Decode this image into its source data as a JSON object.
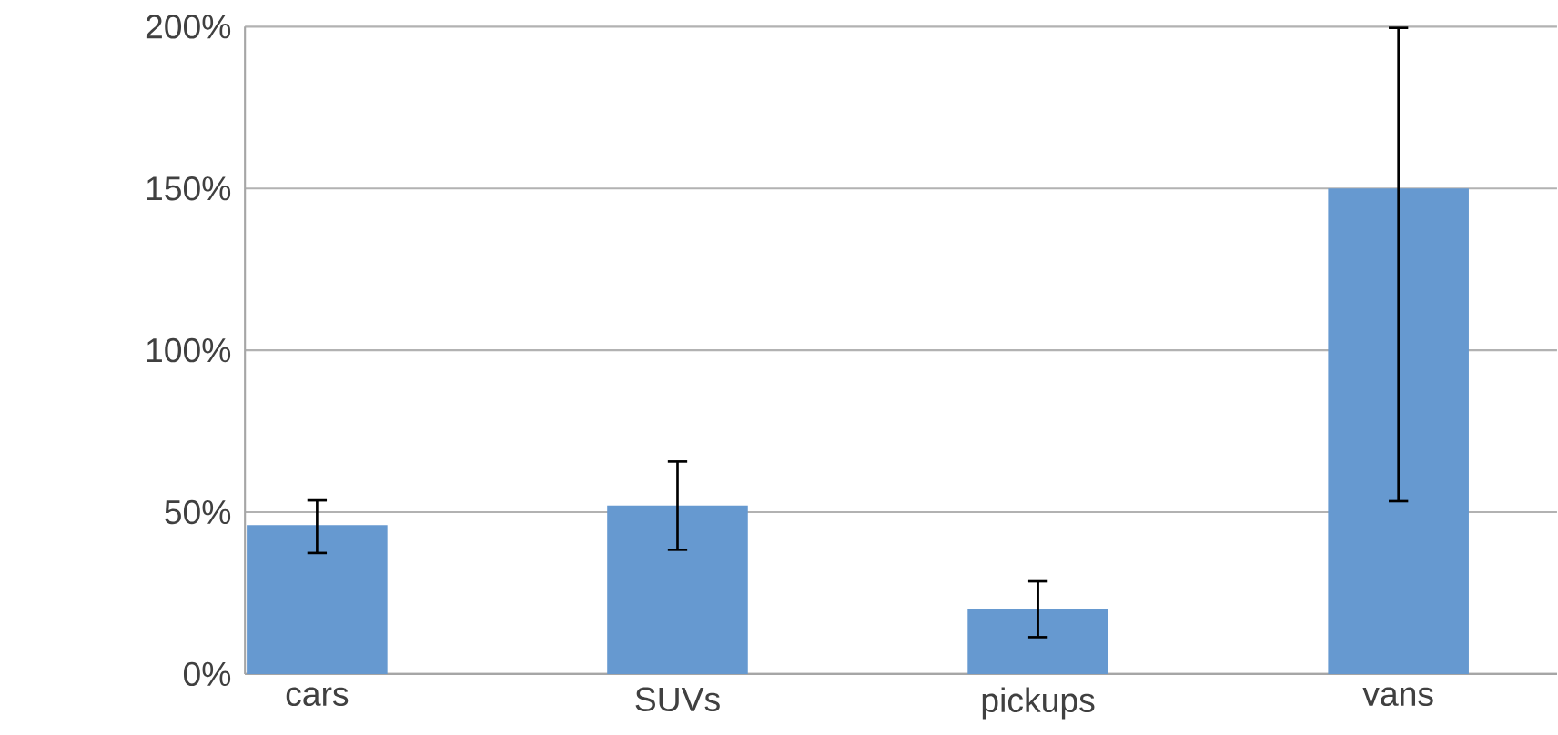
{
  "chart_data": {
    "type": "bar",
    "categories": [
      "cars",
      "SUVs",
      "pickups",
      "vans"
    ],
    "values": [
      46,
      52,
      20,
      150
    ],
    "errors": [
      [
        37,
        54
      ],
      [
        38,
        66
      ],
      [
        11,
        29
      ],
      [
        53,
        200
      ]
    ],
    "color": "#6699d0",
    "ylim": [
      0,
      200
    ],
    "yticks": [
      {
        "value": 0,
        "label": "0%"
      },
      {
        "value": 50,
        "label": "50%"
      },
      {
        "value": 100,
        "label": "100%"
      },
      {
        "value": 150,
        "label": "150%"
      },
      {
        "value": 200,
        "label": "200%"
      }
    ],
    "grid": "y"
  }
}
